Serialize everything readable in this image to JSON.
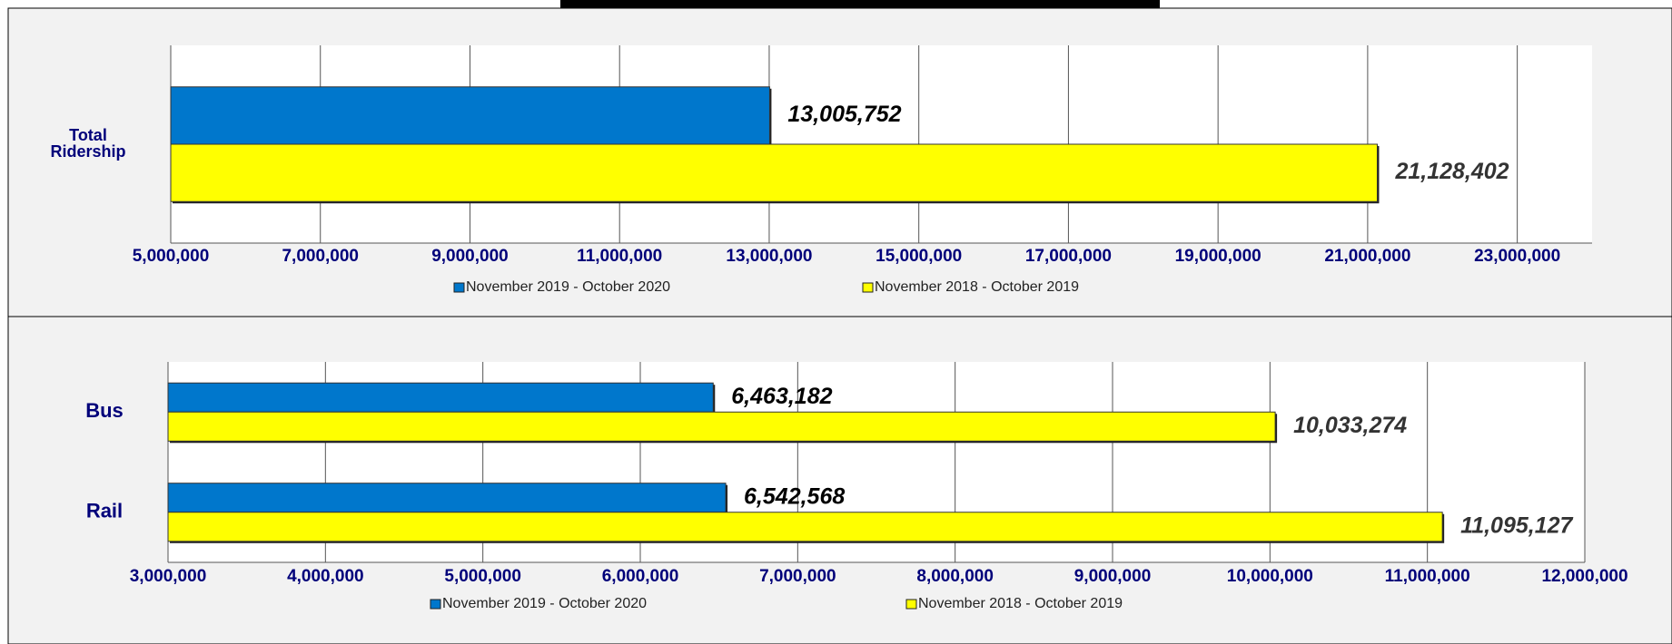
{
  "chart_data": [
    {
      "type": "bar",
      "orientation": "horizontal",
      "categories": [
        "Total\nRidership"
      ],
      "series": [
        {
          "name": "November 2019 - October 2020",
          "color": "#0077cc",
          "values": [
            13005752
          ],
          "value_labels": [
            "13,005,752"
          ]
        },
        {
          "name": "November 2018 - October 2019",
          "color": "#ffff00",
          "values": [
            21128402
          ],
          "value_labels": [
            "21,128,402"
          ]
        }
      ],
      "xlim": [
        5000000,
        24000000
      ],
      "xticks": [
        {
          "value": 5000000,
          "label": "5,000,000"
        },
        {
          "value": 7000000,
          "label": "7,000,000"
        },
        {
          "value": 9000000,
          "label": "9,000,000"
        },
        {
          "value": 11000000,
          "label": "11,000,000"
        },
        {
          "value": 13000000,
          "label": "13,000,000"
        },
        {
          "value": 15000000,
          "label": "15,000,000"
        },
        {
          "value": 17000000,
          "label": "17,000,000"
        },
        {
          "value": 19000000,
          "label": "19,000,000"
        },
        {
          "value": 21000000,
          "label": "21,000,000"
        },
        {
          "value": 23000000,
          "label": "23,000,000"
        }
      ],
      "grid": true,
      "legend": "bottom"
    },
    {
      "type": "bar",
      "orientation": "horizontal",
      "categories": [
        "Bus",
        "Rail"
      ],
      "series": [
        {
          "name": "November 2019 - October 2020",
          "color": "#0077cc",
          "values": [
            6463182,
            6542568
          ],
          "value_labels": [
            "6,463,182",
            "6,542,568"
          ]
        },
        {
          "name": "November 2018 - October 2019",
          "color": "#ffff00",
          "values": [
            10033274,
            11095127
          ],
          "value_labels": [
            "10,033,274",
            "11,095,127"
          ]
        }
      ],
      "xlim": [
        3000000,
        12000000
      ],
      "xticks": [
        {
          "value": 3000000,
          "label": "3,000,000"
        },
        {
          "value": 4000000,
          "label": "4,000,000"
        },
        {
          "value": 5000000,
          "label": "5,000,000"
        },
        {
          "value": 6000000,
          "label": "6,000,000"
        },
        {
          "value": 7000000,
          "label": "7,000,000"
        },
        {
          "value": 8000000,
          "label": "8,000,000"
        },
        {
          "value": 9000000,
          "label": "9,000,000"
        },
        {
          "value": 10000000,
          "label": "10,000,000"
        },
        {
          "value": 11000000,
          "label": "11,000,000"
        },
        {
          "value": 12000000,
          "label": "12,000,000"
        }
      ],
      "grid": true,
      "legend": "bottom"
    }
  ]
}
